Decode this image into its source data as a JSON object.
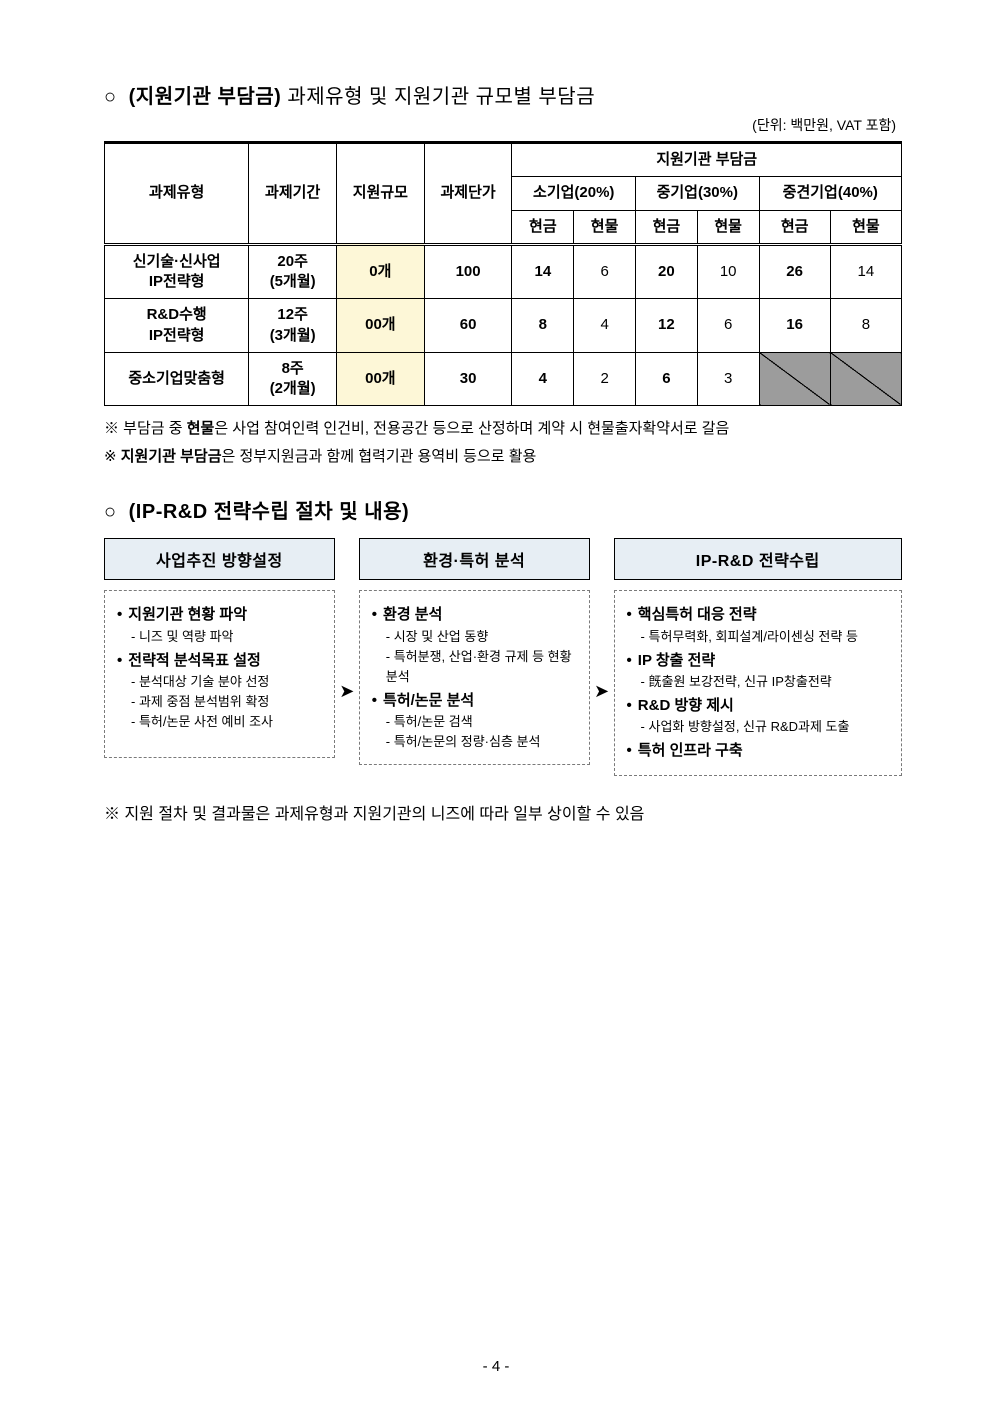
{
  "section1": {
    "title_prefix": "○ ",
    "title_bold": "(지원기관 부담금)",
    "title_rest": " 과제유형 및 지원기관 규모별 부담금",
    "unit": "(단위: 백만원, VAT 포함)"
  },
  "table": {
    "head": {
      "c1": "과제유형",
      "c2": "과제기간",
      "c3": "지원규모",
      "c4": "과제단가",
      "group": "지원기관 부담금",
      "g1": "소기업(20%)",
      "g2": "중기업(30%)",
      "g3": "중견기업(40%)",
      "cash": "현금",
      "kind": "현물"
    },
    "rows": [
      {
        "type": "신기술·신사업\nIP전략형",
        "period": "20주\n(5개월)",
        "scale": "0개",
        "unitprice": "100",
        "s_cash": "14",
        "s_kind": "6",
        "m_cash": "20",
        "m_kind": "10",
        "l_cash": "26",
        "l_kind": "14",
        "l_disabled": false
      },
      {
        "type": "R&D수행\nIP전략형",
        "period": "12주\n(3개월)",
        "scale": "00개",
        "unitprice": "60",
        "s_cash": "8",
        "s_kind": "4",
        "m_cash": "12",
        "m_kind": "6",
        "l_cash": "16",
        "l_kind": "8",
        "l_disabled": false
      },
      {
        "type": "중소기업맞춤형",
        "period": "8주\n(2개월)",
        "scale": "00개",
        "unitprice": "30",
        "s_cash": "4",
        "s_kind": "2",
        "m_cash": "6",
        "m_kind": "3",
        "l_cash": "",
        "l_kind": "",
        "l_disabled": true
      }
    ]
  },
  "notes": {
    "n1_pre": "※ 부담금 중 ",
    "n1_b": "현물",
    "n1_post": "은 사업 참여인력 인건비, 전용공간 등으로 산정하며 계약 시 현물출자확약서로 갈음",
    "n2_pre": "※ ",
    "n2_b": "지원기관 부담금",
    "n2_post": "은 정부지원금과 함께 협력기관 용역비 등으로 활용"
  },
  "section2": {
    "title_prefix": "○ ",
    "title": "(IP-R&D 전략수립 절차 및 내용)"
  },
  "flow": {
    "arrow": "➤",
    "stages": [
      {
        "head": "사업추진 방향설정",
        "items": [
          {
            "t": "bi",
            "text": "지원기관 현황 파악"
          },
          {
            "t": "si",
            "text": "니즈 및 역량 파악"
          },
          {
            "t": "bi",
            "text": "전략적 분석목표 설정"
          },
          {
            "t": "si",
            "text": "분석대상 기술 분야 선정"
          },
          {
            "t": "si",
            "text": "과제 중점 분석범위 확정"
          },
          {
            "t": "si",
            "text": "특허/논문 사전 예비 조사"
          }
        ]
      },
      {
        "head": "환경·특허 분석",
        "items": [
          {
            "t": "bi",
            "text": "환경 분석"
          },
          {
            "t": "si",
            "text": "시장 및 산업 동향"
          },
          {
            "t": "si",
            "text": "특허분쟁, 산업·환경 규제 등 현황 분석"
          },
          {
            "t": "bi",
            "text": "특허/논문 분석"
          },
          {
            "t": "si",
            "text": "특허/논문 검색"
          },
          {
            "t": "si",
            "text": "특허/논문의 정량·심층 분석"
          }
        ]
      },
      {
        "head": "IP-R&D 전략수립",
        "items": [
          {
            "t": "bi",
            "text": "핵심특허 대응 전략"
          },
          {
            "t": "si",
            "text": "특허무력화, 회피설계/라이센싱 전략 등"
          },
          {
            "t": "bi",
            "text": "IP 창출 전략"
          },
          {
            "t": "si",
            "text": "旣출원 보강전략, 신규 IP창출전략"
          },
          {
            "t": "bi",
            "text": "R&D 방향 제시"
          },
          {
            "t": "si",
            "text": "사업화 방향설정, 신규 R&D과제 도출"
          },
          {
            "t": "bi",
            "text": "특허 인프라 구축"
          }
        ]
      }
    ]
  },
  "footnote": "※ 지원 절차 및 결과물은 과제유형과 지원기관의 니즈에 따라 일부 상이할 수 있음",
  "page_number": "- 4 -"
}
